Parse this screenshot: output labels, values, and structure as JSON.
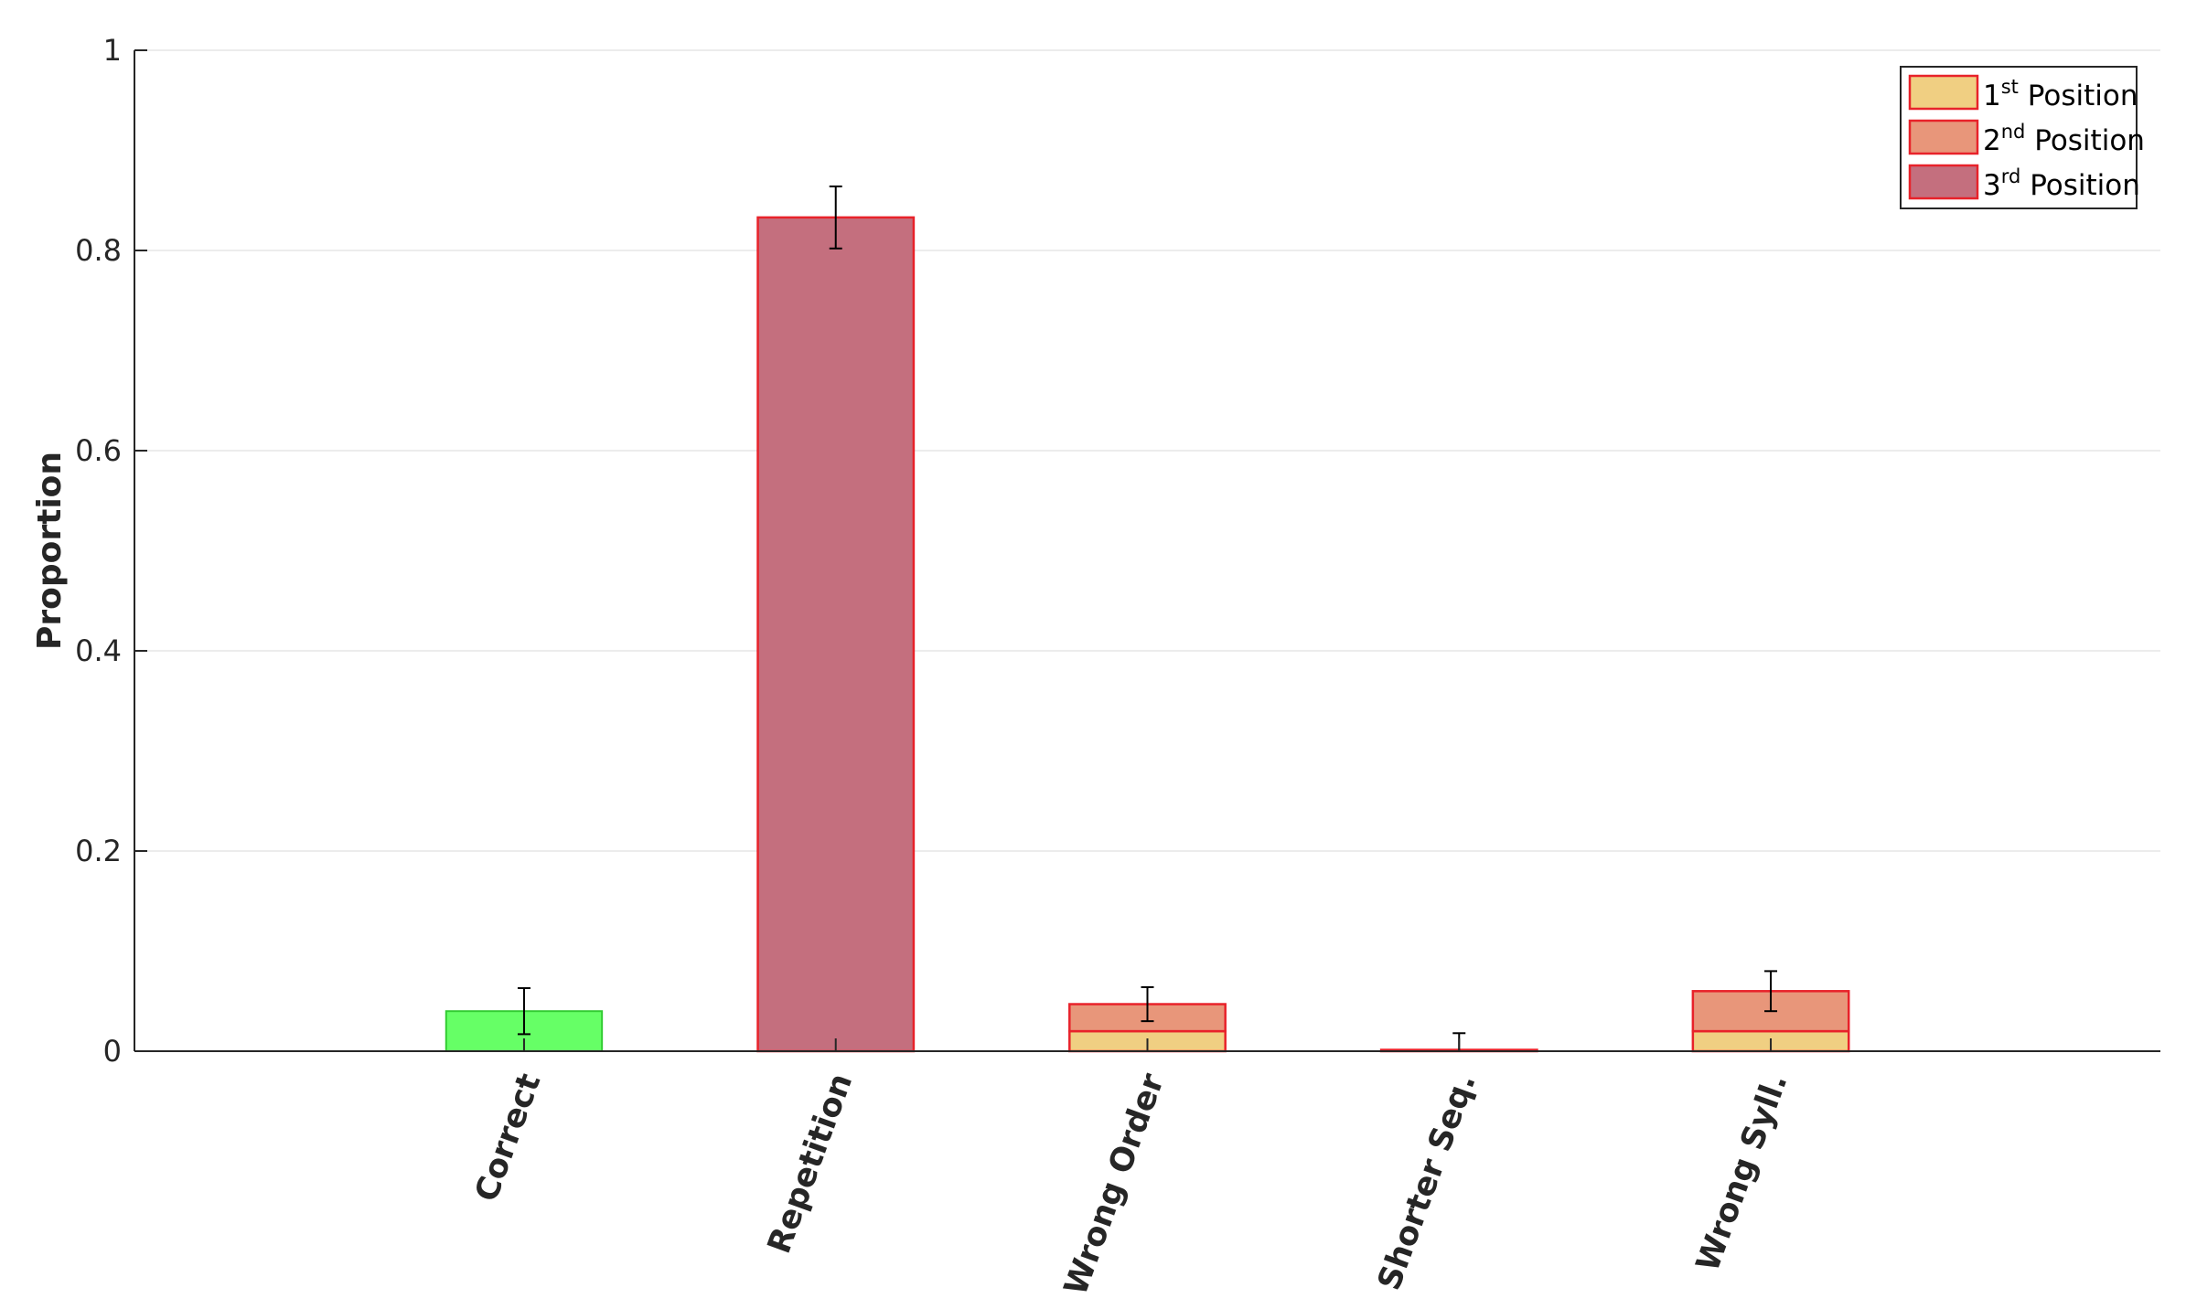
{
  "chart_data": {
    "type": "bar",
    "stacked": true,
    "ylabel": "Proportion",
    "xlabel": "",
    "title": "",
    "ylim": [
      0,
      1
    ],
    "yticks": [
      "0",
      "0.2",
      "0.4",
      "0.6",
      "0.8",
      "1"
    ],
    "ytick_values": [
      0,
      0.2,
      0.4,
      0.6,
      0.8,
      1
    ],
    "grid": "horizontal",
    "legend_position": "top-right",
    "categories": [
      "Correct",
      "Repetition",
      "Wrong Order",
      "Shorter Seq.",
      "Wrong Syll."
    ],
    "correct_bar": {
      "category": "Correct",
      "value": 0.04,
      "color": "#66ff66",
      "edge_color": "#33cc33"
    },
    "series": [
      {
        "name": "1st Position",
        "base": "1",
        "sup": "st",
        "suffix": " Position",
        "color": "#f0cf82",
        "values": [
          0,
          0,
          0.02,
          0,
          0.02
        ]
      },
      {
        "name": "2nd Position",
        "base": "2",
        "sup": "nd",
        "suffix": " Position",
        "color": "#e8967a",
        "values": [
          0,
          0,
          0.027,
          0,
          0.04
        ]
      },
      {
        "name": "3rd Position",
        "base": "3",
        "sup": "rd",
        "suffix": " Position",
        "color": "#c46f7e",
        "values": [
          0,
          0.833,
          0,
          0.001,
          0
        ]
      }
    ],
    "bar_edge_color": "#e8222a",
    "error_bars": [
      {
        "category": "Correct",
        "center": 0.04,
        "low": 0.017,
        "high": 0.063
      },
      {
        "category": "Repetition",
        "center": 0.833,
        "low": 0.802,
        "high": 0.864
      },
      {
        "category": "Wrong Order",
        "center": 0.047,
        "low": 0.03,
        "high": 0.064
      },
      {
        "category": "Shorter Seq.",
        "center": 0.0,
        "low": 0.0,
        "high": 0.018
      },
      {
        "category": "Wrong Syll.",
        "center": 0.06,
        "low": 0.04,
        "high": 0.08
      }
    ]
  }
}
